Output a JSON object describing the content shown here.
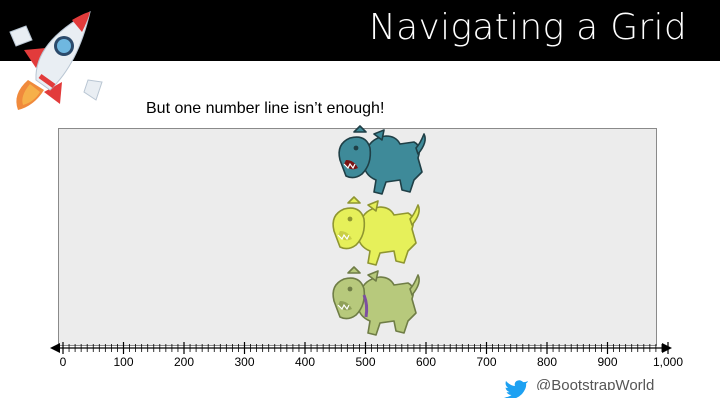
{
  "slide": {
    "title": "Navigating a Grid",
    "subtitle": "But one number line isn’t enough!",
    "logo_icon": "rocket-icon",
    "social_handle": "@BootstrapWorld",
    "social_icon": "twitter-bird-icon"
  },
  "number_line": {
    "tick_labels": [
      "0",
      "100",
      "200",
      "300",
      "400",
      "500",
      "600",
      "700",
      "800",
      "900",
      "1,000"
    ]
  },
  "characters": [
    {
      "name": "teal-dog",
      "color": "#3e8a99"
    },
    {
      "name": "yellow-dog",
      "color": "#e6f05a"
    },
    {
      "name": "olive-dog",
      "color": "#b7c97c"
    }
  ],
  "colors": {
    "header": "#000000",
    "grid_background": "#ececec",
    "twitter_blue": "#1da1f2"
  }
}
